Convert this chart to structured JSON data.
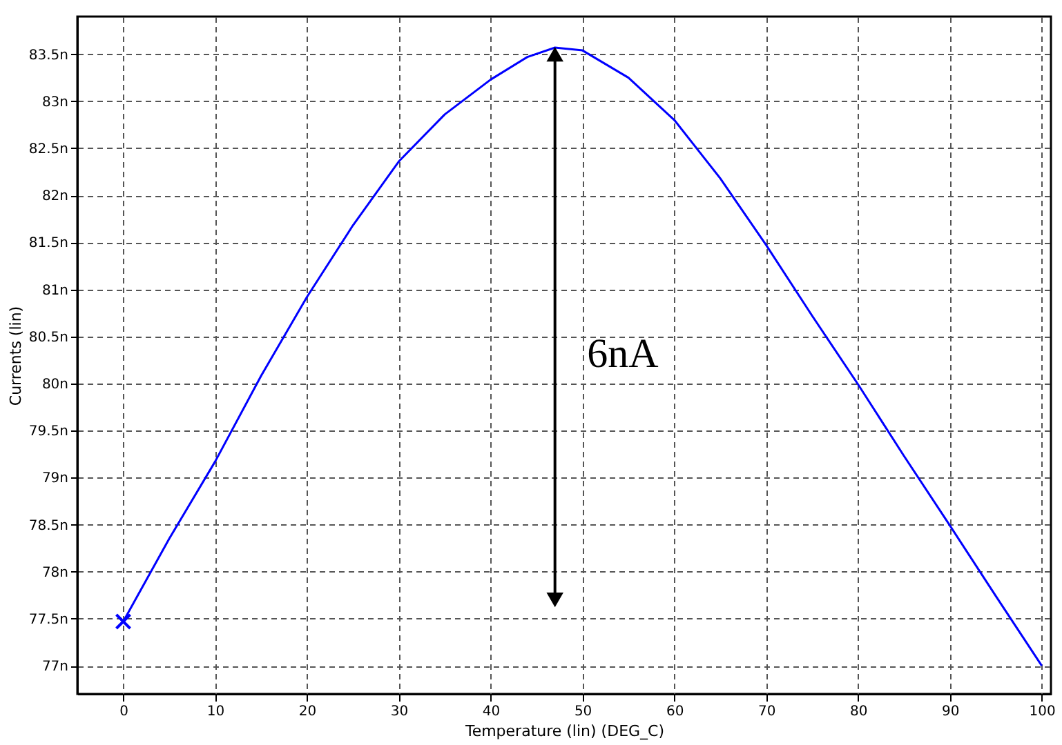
{
  "chart_data": {
    "type": "line",
    "xlabel": "Temperature (lin) (DEG_C)",
    "ylabel": "Currents (lin)",
    "xlim": [
      -5,
      101
    ],
    "xticks": [
      0,
      10,
      20,
      30,
      40,
      50,
      60,
      70,
      80,
      90,
      100
    ],
    "ylim": [
      76.7,
      83.9
    ],
    "yticks": [
      {
        "value": 77,
        "label": "77n"
      },
      {
        "value": 77.5,
        "label": "77.5n"
      },
      {
        "value": 78,
        "label": "78n"
      },
      {
        "value": 78.5,
        "label": "78.5n"
      },
      {
        "value": 79,
        "label": "79n"
      },
      {
        "value": 79.5,
        "label": "79.5n"
      },
      {
        "value": 80,
        "label": "80n"
      },
      {
        "value": 80.5,
        "label": "80.5n"
      },
      {
        "value": 81,
        "label": "81n"
      },
      {
        "value": 81.5,
        "label": "81.5n"
      },
      {
        "value": 82,
        "label": "82n"
      },
      {
        "value": 82.5,
        "label": "82.5n"
      },
      {
        "value": 83,
        "label": "83n"
      },
      {
        "value": 83.5,
        "label": "83.5n"
      }
    ],
    "grid": true,
    "series": [
      {
        "type": "line",
        "color": "#0000ff",
        "x": [
          0,
          5,
          10,
          15,
          20,
          25,
          30,
          35,
          40,
          44,
          47,
          50,
          55,
          60,
          65,
          70,
          75,
          80,
          85,
          90,
          95,
          100
        ],
        "values": [
          77.47,
          78.35,
          79.17,
          80.08,
          80.92,
          81.68,
          82.36,
          82.86,
          83.23,
          83.47,
          83.57,
          83.54,
          83.25,
          82.8,
          82.18,
          81.47,
          80.72,
          79.99,
          79.23,
          78.49,
          77.74,
          77.0
        ],
        "marker": "none"
      },
      {
        "type": "scatter",
        "color": "#0000ff",
        "x": [
          0
        ],
        "values": [
          77.47
        ],
        "marker": "cross"
      },
      {
        "type": "line",
        "color": "#000000",
        "x": [
          47,
          47
        ],
        "values": [
          77.7,
          83.5
        ],
        "marker": "triangle"
      }
    ],
    "annotations": [
      "6nA"
    ]
  }
}
